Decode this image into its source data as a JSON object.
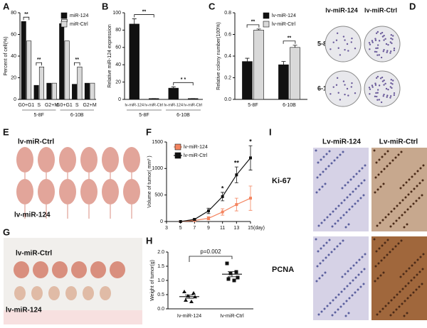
{
  "panel_labels": [
    "A",
    "B",
    "C",
    "D",
    "E",
    "F",
    "G",
    "H",
    "I"
  ],
  "chart_data": [
    {
      "type": "bar",
      "ylabel": "Percent of cell(%)",
      "categories": [
        "G0+G1",
        "S",
        "G2+M",
        "G0+G1",
        "S",
        "G2+M"
      ],
      "groups": [
        "5-8F",
        "6-10B"
      ],
      "series": [
        {
          "name": "miR-124",
          "color": "#111111",
          "values": [
            72,
            13,
            15,
            70,
            14,
            15
          ]
        },
        {
          "name": "miR-Ctrl",
          "color": "#d9d9d9",
          "values": [
            54,
            30,
            15,
            54,
            30,
            15
          ]
        }
      ],
      "ylim": [
        0,
        80
      ],
      "yticks": [
        0,
        20,
        40,
        60,
        80
      ],
      "annotations": [
        "**",
        "**",
        "**",
        "**"
      ]
    },
    {
      "type": "bar",
      "ylabel": "Relative miR-124 expression",
      "categories": [
        "lv-miR-124",
        "lv-miR-Ctrl",
        "lv-miR-124",
        "lv-miR-Ctrl"
      ],
      "groups": [
        "5-8F",
        "6-10B"
      ],
      "values": [
        87,
        1,
        13,
        1
      ],
      "errors": [
        6,
        0,
        1.5,
        0
      ],
      "color": "#111111",
      "ylim": [
        0,
        100
      ],
      "yticks": [
        0,
        20,
        40,
        60,
        80,
        100
      ],
      "annotations": [
        "**",
        "* *"
      ]
    },
    {
      "type": "bar",
      "ylabel": "Relative colony number(100%)",
      "categories": [
        "5-8F",
        "6-10B"
      ],
      "series": [
        {
          "name": "lv-miR-124",
          "color": "#111111",
          "values": [
            0.35,
            0.32
          ],
          "errors": [
            0.03,
            0.03
          ]
        },
        {
          "name": "lv-miR-Ctrl",
          "color": "#d9d9d9",
          "values": [
            0.64,
            0.48
          ],
          "errors": [
            0.01,
            0.02
          ]
        }
      ],
      "ylim": [
        0,
        0.8
      ],
      "yticks": [
        {
          "value": 0,
          "label": "0.0"
        },
        {
          "value": 0.2,
          "label": "0.2"
        },
        {
          "value": 0.4,
          "label": "0.4"
        },
        {
          "value": 0.6,
          "label": "0.6"
        },
        {
          "value": 0.8,
          "label": "0.8"
        }
      ],
      "annotations": [
        "**",
        "**"
      ]
    },
    {
      "type": "line",
      "ylabel": "Volume of tumor( mm³ )",
      "xlabel": "(day)",
      "x": [
        5,
        7,
        9,
        11,
        13,
        15
      ],
      "series": [
        {
          "name": "lv-miR-124",
          "color": "#f4845f",
          "values": [
            0,
            20,
            60,
            180,
            320,
            440
          ],
          "errors": [
            0,
            10,
            30,
            60,
            120,
            230
          ]
        },
        {
          "name": "lv-miR-Ctrl",
          "color": "#111111",
          "values": [
            0,
            40,
            200,
            470,
            880,
            1200
          ],
          "errors": [
            0,
            15,
            50,
            80,
            150,
            230
          ]
        }
      ],
      "xlim": [
        3,
        15
      ],
      "xticks": [
        3,
        5,
        7,
        9,
        11,
        13,
        15
      ],
      "ylim": [
        0,
        1500
      ],
      "yticks": [
        0,
        500,
        1000,
        1500
      ],
      "annotations": [
        "*",
        "**",
        "*"
      ]
    },
    {
      "type": "scatter",
      "ylabel": "Weight of tumor(g)",
      "categories": [
        "Iv-miR-124",
        "Iv-miR-Ctrl"
      ],
      "points": [
        [
          0.6,
          0.55,
          0.45,
          0.42,
          0.3,
          0.25
        ],
        [
          1.6,
          1.3,
          1.25,
          1.1,
          1.05,
          1.0
        ]
      ],
      "means": [
        0.43,
        1.22
      ],
      "errors": [
        0.06,
        0.09
      ],
      "ylim": [
        0,
        2
      ],
      "yticks": [
        {
          "value": 0,
          "label": "0.0"
        },
        {
          "value": 0.5,
          "label": "0.5"
        },
        {
          "value": 1,
          "label": "1.0"
        },
        {
          "value": 1.5,
          "label": "1.5"
        },
        {
          "value": 2,
          "label": "2.0"
        }
      ],
      "annotations": [
        "p=0.002"
      ]
    }
  ],
  "photos": {
    "D": {
      "columns": [
        "lv-miR-124",
        "lv-miR-Ctrl"
      ],
      "rows": [
        "5-8F",
        "6-10b"
      ]
    },
    "E": {
      "labels": [
        "lv-miR-Ctrl",
        "lv-miR-124"
      ]
    },
    "G": {
      "labels": [
        "lv-miR-Ctrl",
        "lv-miR-124"
      ]
    },
    "I": {
      "columns": [
        "Lv-miR-124",
        "Lv-miR-Ctrl"
      ],
      "rows": [
        "Ki-67",
        "PCNA"
      ]
    }
  }
}
